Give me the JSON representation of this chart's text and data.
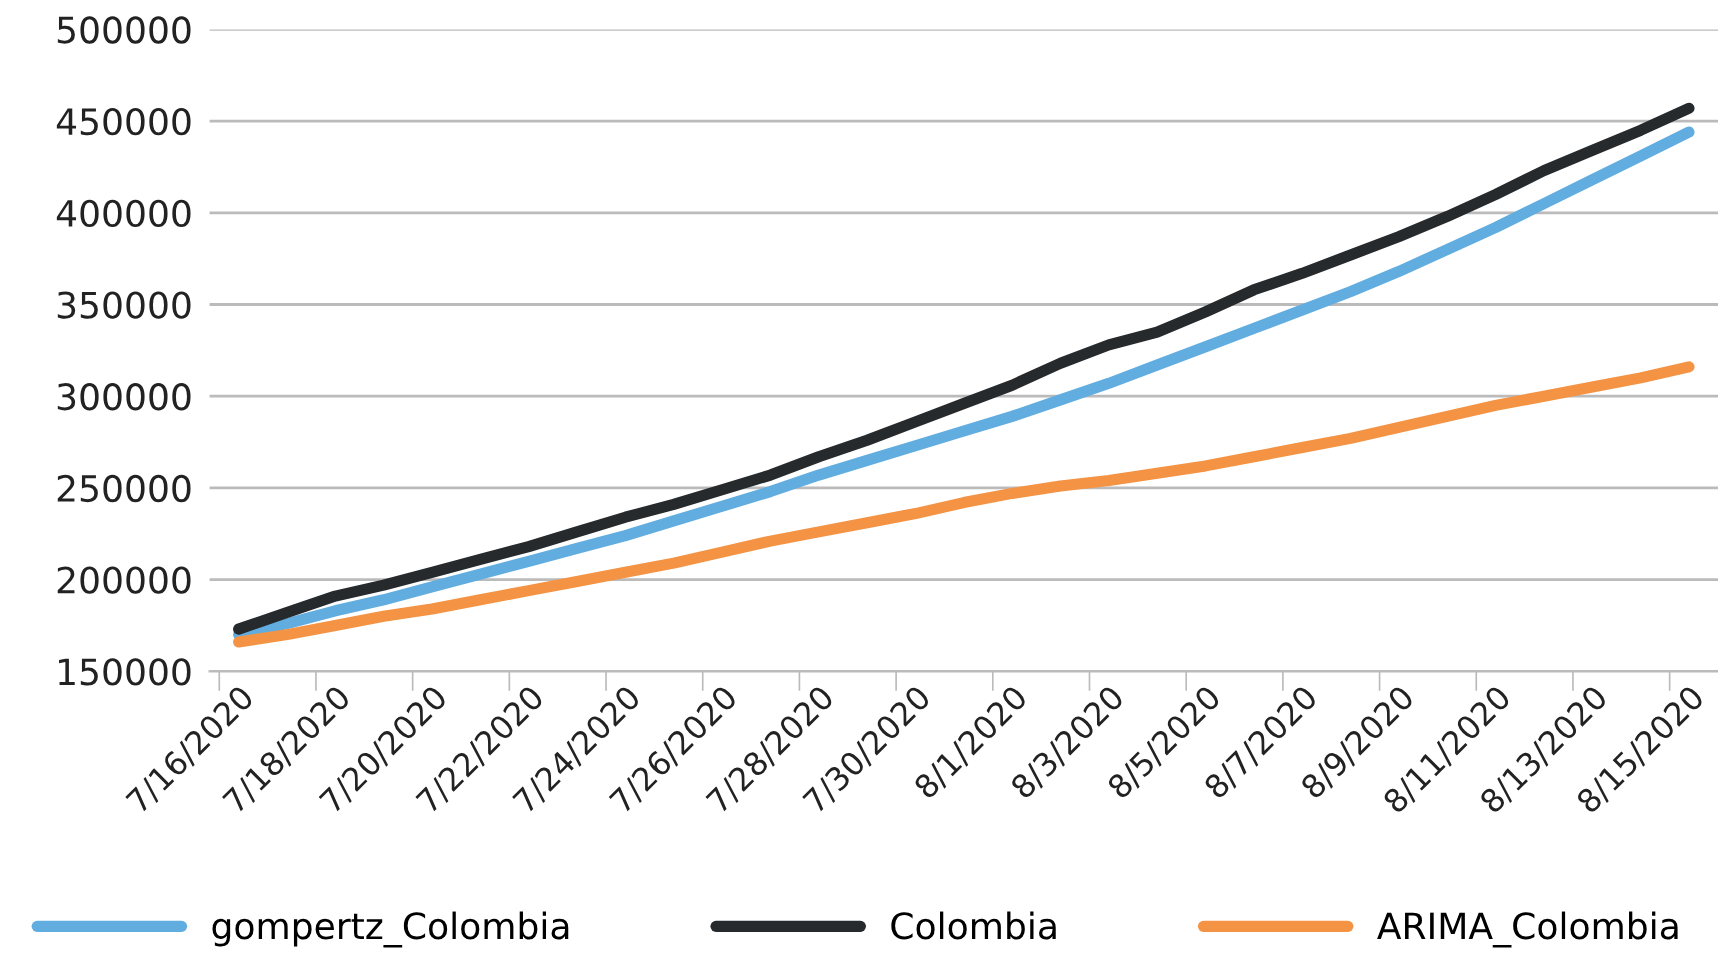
{
  "chart_data": {
    "type": "line",
    "categories": [
      "7/16/2020",
      null,
      "7/18/2020",
      null,
      "7/20/2020",
      null,
      "7/22/2020",
      null,
      "7/24/2020",
      null,
      "7/26/2020",
      null,
      "7/28/2020",
      null,
      "7/30/2020",
      null,
      "8/1/2020",
      null,
      "8/3/2020",
      null,
      "8/5/2020",
      null,
      "8/7/2020",
      null,
      "8/9/2020",
      null,
      "8/11/2020",
      null,
      "8/13/2020",
      null,
      "8/15/2020"
    ],
    "series": [
      {
        "name": "gompertz_Colombia",
        "color": "#62ade0",
        "values": [
          170000,
          176000,
          183000,
          189000,
          196000,
          203000,
          210000,
          217000,
          224000,
          232000,
          240000,
          248000,
          257000,
          265000,
          273000,
          281000,
          289000,
          298000,
          307000,
          317000,
          327000,
          337000,
          347000,
          357000,
          368000,
          380000,
          392000,
          405000,
          418000,
          431000,
          444000
        ]
      },
      {
        "name": "Colombia",
        "color": "#262a2d",
        "values": [
          173000,
          182000,
          191000,
          197000,
          204000,
          211000,
          218000,
          226000,
          234000,
          241000,
          249000,
          257000,
          267000,
          276000,
          286000,
          296000,
          306000,
          318000,
          328000,
          335000,
          346000,
          358000,
          367000,
          377000,
          387000,
          398000,
          410000,
          423000,
          434000,
          445000,
          457000
        ]
      },
      {
        "name": "ARIMA_Colombia",
        "color": "#f39343",
        "values": [
          166000,
          170000,
          175000,
          180000,
          184000,
          189000,
          194000,
          199000,
          204000,
          209000,
          215000,
          221000,
          226000,
          231000,
          236000,
          242000,
          247000,
          251000,
          254000,
          258000,
          262000,
          267000,
          272000,
          277000,
          283000,
          289000,
          295000,
          300000,
          305000,
          310000,
          316000
        ]
      }
    ],
    "ylim": [
      150000,
      500000
    ],
    "yticks": [
      150000,
      200000,
      250000,
      300000,
      350000,
      400000,
      450000,
      500000
    ],
    "grid": "y",
    "legend": "bottom",
    "marker": "none",
    "line_style": "solid"
  }
}
